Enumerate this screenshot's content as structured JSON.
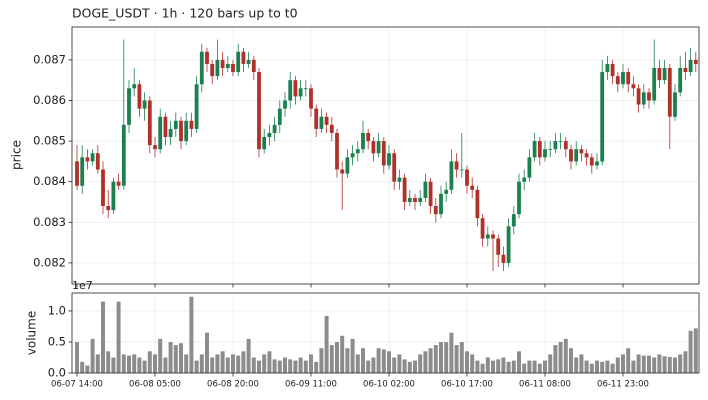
{
  "chart_data": [
    {
      "type": "candlestick",
      "title": "DOGE_USDT  ·  1h  ·  120 bars up to t0",
      "ylabel": "price",
      "up_color": "#1b7f4f",
      "down_color": "#b0302a",
      "grid": true,
      "ylim": [
        0.08148,
        0.08781
      ],
      "yticks": [
        0.082,
        0.083,
        0.084,
        0.085,
        0.086,
        0.087
      ],
      "open": [
        0.0845,
        0.0839,
        0.0846,
        0.0845,
        0.0847,
        0.0843,
        0.0834,
        0.0833,
        0.084,
        0.0839,
        0.0854,
        0.0863,
        0.0864,
        0.0858,
        0.086,
        0.0849,
        0.0848,
        0.0856,
        0.0851,
        0.0853,
        0.0855,
        0.085,
        0.0855,
        0.0853,
        0.0864,
        0.0872,
        0.0869,
        0.0866,
        0.087,
        0.0868,
        0.0869,
        0.0867,
        0.0872,
        0.0869,
        0.087,
        0.0867,
        0.0848,
        0.0851,
        0.0852,
        0.0854,
        0.0858,
        0.086,
        0.0865,
        0.0861,
        0.0863,
        0.0863,
        0.0858,
        0.0853,
        0.0856,
        0.0854,
        0.0852,
        0.0843,
        0.0842,
        0.0846,
        0.0847,
        0.0848,
        0.0852,
        0.085,
        0.0847,
        0.085,
        0.0844,
        0.0847,
        0.084,
        0.0841,
        0.0835,
        0.0836,
        0.0835,
        0.0836,
        0.084,
        0.0834,
        0.0832,
        0.0837,
        0.0838,
        0.0845,
        0.0843,
        0.0843,
        0.0839,
        0.0838,
        0.0831,
        0.0826,
        0.0827,
        0.0826,
        0.0822,
        0.082,
        0.0829,
        0.0832,
        0.084,
        0.0841,
        0.0846,
        0.085,
        0.0846,
        0.0848,
        0.0848,
        0.085,
        0.085,
        0.0848,
        0.0845,
        0.0848,
        0.0847,
        0.0846,
        0.0844,
        0.0845,
        0.0867,
        0.0869,
        0.0866,
        0.0864,
        0.0867,
        0.0864,
        0.0863,
        0.0859,
        0.0862,
        0.086,
        0.0868,
        0.0865,
        0.0868,
        0.0856,
        0.0862,
        0.0868,
        0.0867,
        0.087
      ],
      "high": [
        0.0849,
        0.0849,
        0.0848,
        0.0848,
        0.0849,
        0.0845,
        0.0838,
        0.0841,
        0.0842,
        0.0875,
        0.0865,
        0.0868,
        0.0865,
        0.0862,
        0.0861,
        0.0851,
        0.0858,
        0.0857,
        0.0855,
        0.0857,
        0.0856,
        0.0857,
        0.0857,
        0.0866,
        0.0874,
        0.0873,
        0.087,
        0.0875,
        0.0872,
        0.0871,
        0.087,
        0.0874,
        0.0873,
        0.0872,
        0.0871,
        0.0868,
        0.0853,
        0.0854,
        0.0856,
        0.086,
        0.0862,
        0.0867,
        0.0866,
        0.0865,
        0.0865,
        0.0864,
        0.0859,
        0.0858,
        0.0857,
        0.0856,
        0.0853,
        0.0845,
        0.0848,
        0.0849,
        0.085,
        0.0855,
        0.0853,
        0.0851,
        0.0852,
        0.0851,
        0.0849,
        0.0848,
        0.0843,
        0.0842,
        0.0838,
        0.0837,
        0.0838,
        0.0842,
        0.0841,
        0.0836,
        0.0839,
        0.084,
        0.0848,
        0.0847,
        0.0852,
        0.0844,
        0.0841,
        0.0839,
        0.0832,
        0.0829,
        0.0828,
        0.0827,
        0.0824,
        0.0831,
        0.0834,
        0.0842,
        0.0843,
        0.0848,
        0.0852,
        0.0851,
        0.085,
        0.085,
        0.0852,
        0.0852,
        0.0851,
        0.0849,
        0.085,
        0.0849,
        0.0848,
        0.0847,
        0.0847,
        0.087,
        0.0871,
        0.087,
        0.0867,
        0.0869,
        0.0868,
        0.0866,
        0.0864,
        0.0864,
        0.0863,
        0.0875,
        0.087,
        0.087,
        0.0869,
        0.0864,
        0.0871,
        0.0872,
        0.0873,
        0.0872
      ],
      "low": [
        0.0838,
        0.0837,
        0.0843,
        0.0844,
        0.0842,
        0.0832,
        0.0831,
        0.0832,
        0.0838,
        0.0838,
        0.0852,
        0.0861,
        0.0856,
        0.0855,
        0.0847,
        0.0846,
        0.0847,
        0.0849,
        0.0849,
        0.0851,
        0.0848,
        0.0849,
        0.0851,
        0.0852,
        0.0862,
        0.0867,
        0.0864,
        0.0865,
        0.0866,
        0.0867,
        0.0866,
        0.0866,
        0.0867,
        0.0868,
        0.0865,
        0.0846,
        0.0847,
        0.0849,
        0.085,
        0.0852,
        0.0856,
        0.0858,
        0.0859,
        0.086,
        0.0861,
        0.0856,
        0.0851,
        0.0852,
        0.0852,
        0.085,
        0.0841,
        0.0833,
        0.0841,
        0.0844,
        0.0845,
        0.0847,
        0.0848,
        0.0845,
        0.0846,
        0.0842,
        0.0843,
        0.0838,
        0.0838,
        0.0833,
        0.0834,
        0.0833,
        0.0834,
        0.0835,
        0.0832,
        0.083,
        0.0831,
        0.0835,
        0.0837,
        0.0841,
        0.0841,
        0.0837,
        0.0836,
        0.0829,
        0.0824,
        0.0824,
        0.0818,
        0.0819,
        0.0818,
        0.0819,
        0.0827,
        0.0831,
        0.0838,
        0.084,
        0.0845,
        0.0844,
        0.0845,
        0.0846,
        0.0847,
        0.0848,
        0.0846,
        0.0843,
        0.0844,
        0.0845,
        0.0844,
        0.0842,
        0.0843,
        0.0844,
        0.0865,
        0.0864,
        0.0862,
        0.0863,
        0.0862,
        0.0861,
        0.0857,
        0.0858,
        0.0858,
        0.0859,
        0.0863,
        0.0864,
        0.0848,
        0.0855,
        0.0861,
        0.0865,
        0.0866,
        0.0867
      ],
      "close": [
        0.0839,
        0.0846,
        0.0845,
        0.0847,
        0.0843,
        0.0834,
        0.0833,
        0.084,
        0.0839,
        0.0854,
        0.0863,
        0.0864,
        0.0858,
        0.086,
        0.0849,
        0.0848,
        0.0856,
        0.0851,
        0.0853,
        0.0855,
        0.085,
        0.0855,
        0.0853,
        0.0864,
        0.0872,
        0.0869,
        0.0866,
        0.087,
        0.0868,
        0.0869,
        0.0867,
        0.0872,
        0.0869,
        0.087,
        0.0867,
        0.0848,
        0.0851,
        0.0852,
        0.0854,
        0.0858,
        0.086,
        0.0865,
        0.0861,
        0.0863,
        0.0863,
        0.0858,
        0.0853,
        0.0856,
        0.0854,
        0.0852,
        0.0843,
        0.0842,
        0.0846,
        0.0847,
        0.0848,
        0.0852,
        0.085,
        0.0847,
        0.085,
        0.0844,
        0.0847,
        0.084,
        0.0841,
        0.0835,
        0.0836,
        0.0835,
        0.0836,
        0.084,
        0.0834,
        0.0832,
        0.0837,
        0.0838,
        0.0845,
        0.0843,
        0.0843,
        0.0839,
        0.0838,
        0.0831,
        0.0826,
        0.0827,
        0.0826,
        0.0822,
        0.082,
        0.0829,
        0.0832,
        0.084,
        0.0841,
        0.0846,
        0.085,
        0.0846,
        0.0848,
        0.0848,
        0.085,
        0.085,
        0.0848,
        0.0845,
        0.0848,
        0.0847,
        0.0846,
        0.0844,
        0.0845,
        0.0867,
        0.0869,
        0.0866,
        0.0864,
        0.0867,
        0.0864,
        0.0863,
        0.0859,
        0.0862,
        0.086,
        0.0868,
        0.0865,
        0.0868,
        0.0856,
        0.0862,
        0.0868,
        0.0867,
        0.087,
        0.0869
      ]
    },
    {
      "type": "bar",
      "ylabel": "volume",
      "offset_label": "1e7",
      "color": "#8c8c8c",
      "grid": true,
      "ylim": [
        0,
        1.29
      ],
      "yticks": [
        {
          "value": 0,
          "label": "0.0"
        },
        {
          "value": 0.5,
          "label": "0.5"
        },
        {
          "value": 1,
          "label": "1.0"
        }
      ],
      "categories": [
        "06-07 14:00",
        null,
        null,
        null,
        null,
        null,
        null,
        null,
        null,
        null,
        null,
        null,
        null,
        null,
        null,
        "06-08 05:00",
        null,
        null,
        null,
        null,
        null,
        null,
        null,
        null,
        null,
        null,
        null,
        null,
        null,
        null,
        "06-08 20:00",
        null,
        null,
        null,
        null,
        null,
        null,
        null,
        null,
        null,
        null,
        null,
        null,
        null,
        null,
        "06-09 11:00",
        null,
        null,
        null,
        null,
        null,
        null,
        null,
        null,
        null,
        null,
        null,
        null,
        null,
        null,
        "06-10 02:00",
        null,
        null,
        null,
        null,
        null,
        null,
        null,
        null,
        null,
        null,
        null,
        null,
        null,
        null,
        "06-10 17:00",
        null,
        null,
        null,
        null,
        null,
        null,
        null,
        null,
        null,
        null,
        null,
        null,
        null,
        null,
        "06-11 08:00",
        null,
        null,
        null,
        null,
        null,
        null,
        null,
        null,
        null,
        null,
        null,
        null,
        null,
        null,
        "06-11 23:00",
        null,
        null,
        null,
        null,
        null,
        null,
        null,
        null,
        null,
        null,
        null,
        null,
        null,
        null
      ],
      "values": [
        0.5,
        0.18,
        0.12,
        0.55,
        0.3,
        1.15,
        0.35,
        0.25,
        1.15,
        0.3,
        0.28,
        0.3,
        0.25,
        0.2,
        0.35,
        0.3,
        0.55,
        0.25,
        0.5,
        0.45,
        0.48,
        0.3,
        1.23,
        0.2,
        0.3,
        0.65,
        0.25,
        0.3,
        0.35,
        0.25,
        0.3,
        0.28,
        0.35,
        0.55,
        0.25,
        0.2,
        0.3,
        0.35,
        0.22,
        0.2,
        0.25,
        0.22,
        0.2,
        0.25,
        0.2,
        0.3,
        0.18,
        0.4,
        0.92,
        0.45,
        0.5,
        0.6,
        0.4,
        0.55,
        0.3,
        0.4,
        0.2,
        0.25,
        0.4,
        0.38,
        0.35,
        0.25,
        0.3,
        0.22,
        0.18,
        0.2,
        0.3,
        0.35,
        0.4,
        0.45,
        0.5,
        0.5,
        0.65,
        0.45,
        0.5,
        0.35,
        0.3,
        0.2,
        0.15,
        0.25,
        0.2,
        0.22,
        0.25,
        0.18,
        0.2,
        0.35,
        0.15,
        0.2,
        0.2,
        0.15,
        0.2,
        0.3,
        0.45,
        0.5,
        0.55,
        0.4,
        0.25,
        0.3,
        0.2,
        0.15,
        0.2,
        0.18,
        0.2,
        0.15,
        0.25,
        0.3,
        0.4,
        0.2,
        0.3,
        0.28,
        0.28,
        0.25,
        0.3,
        0.27,
        0.26,
        0.25,
        0.3,
        0.35,
        0.68,
        0.72
      ]
    }
  ]
}
